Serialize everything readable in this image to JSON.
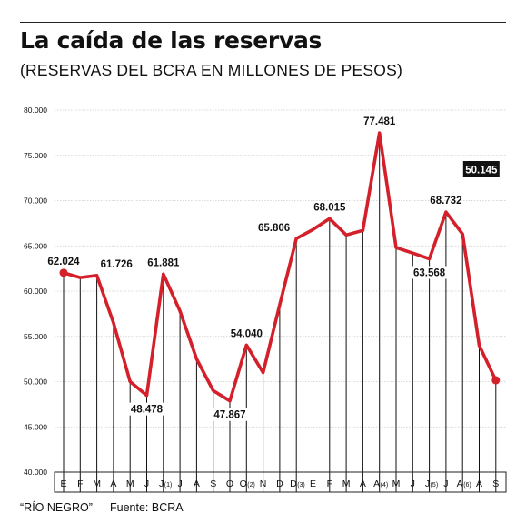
{
  "header": {
    "title": "La caída de las reservas",
    "subtitle": "(RESERVAS DEL BCRA EN MILLONES DE PESOS)"
  },
  "footer": {
    "credit": "“RÍO NEGRO”",
    "source": "Fuente: BCRA"
  },
  "colors": {
    "line": "#d4202a",
    "text": "#111111",
    "grid": "#cccccc",
    "highlight_bg": "#111111",
    "highlight_text": "#ffffff"
  },
  "chart_data": {
    "type": "line",
    "title": "La caída de las reservas",
    "subtitle": "(RESERVAS DEL BCRA EN MILLONES DE PESOS)",
    "xlabel": "",
    "ylabel": "",
    "ylim": [
      40000,
      80000
    ],
    "yticks": [
      40000,
      45000,
      50000,
      55000,
      60000,
      65000,
      70000,
      75000,
      80000
    ],
    "ytick_labels": [
      "40.000",
      "45.000",
      "50.000",
      "55.000",
      "60.000",
      "65.000",
      "70.000",
      "75.000",
      "80.000"
    ],
    "grid": true,
    "categories": [
      {
        "letter": "E"
      },
      {
        "letter": "F"
      },
      {
        "letter": "M"
      },
      {
        "letter": "A"
      },
      {
        "letter": "M"
      },
      {
        "letter": "J"
      },
      {
        "letter": "J",
        "note": "(1)"
      },
      {
        "letter": "J"
      },
      {
        "letter": "A"
      },
      {
        "letter": "S"
      },
      {
        "letter": "O"
      },
      {
        "letter": "O",
        "note": "(2)"
      },
      {
        "letter": "N"
      },
      {
        "letter": "D"
      },
      {
        "letter": "D",
        "note": "(3)"
      },
      {
        "letter": "E"
      },
      {
        "letter": "F"
      },
      {
        "letter": "M"
      },
      {
        "letter": "A"
      },
      {
        "letter": "A",
        "note": "(4)"
      },
      {
        "letter": "M"
      },
      {
        "letter": "J"
      },
      {
        "letter": "J",
        "note": "(5)"
      },
      {
        "letter": "J"
      },
      {
        "letter": "A",
        "note": "(6)"
      },
      {
        "letter": "A"
      },
      {
        "letter": "S"
      }
    ],
    "values": [
      62024,
      61500,
      61726,
      56500,
      50000,
      48478,
      61881,
      57800,
      52500,
      49000,
      47867,
      54040,
      51000,
      58500,
      65806,
      66800,
      68015,
      66200,
      66700,
      77481,
      64800,
      64200,
      63568,
      68732,
      66300,
      54000,
      50145
    ],
    "labels": [
      {
        "index": 0,
        "text": "62.024",
        "pos": "above"
      },
      {
        "index": 2,
        "text": "61.726",
        "pos": "right"
      },
      {
        "index": 5,
        "text": "48.478",
        "pos": "below"
      },
      {
        "index": 6,
        "text": "61.881",
        "pos": "above"
      },
      {
        "index": 10,
        "text": "47.867",
        "pos": "below"
      },
      {
        "index": 11,
        "text": "54.040",
        "pos": "above"
      },
      {
        "index": 14,
        "text": "65.806",
        "pos": "left"
      },
      {
        "index": 16,
        "text": "68.015",
        "pos": "above"
      },
      {
        "index": 19,
        "text": "77.481",
        "pos": "above"
      },
      {
        "index": 22,
        "text": "63.568",
        "pos": "below"
      },
      {
        "index": 23,
        "text": "68.732",
        "pos": "above"
      },
      {
        "index": 26,
        "text": "50.145",
        "pos": "highlight"
      }
    ],
    "markers": [
      0,
      26
    ]
  }
}
